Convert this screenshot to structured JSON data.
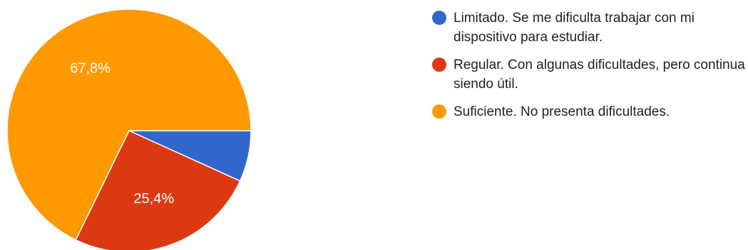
{
  "chart_data": {
    "type": "pie",
    "categories": [
      "Limitado. Se me dificulta trabajar con mi dispositivo para estudiar.",
      "Regular. Con algunas dificultades, pero continua siendo útil.",
      "Suficiente. No presenta dificultades."
    ],
    "values": [
      6.8,
      25.4,
      67.8
    ],
    "data_labels": [
      "",
      "25,4%",
      "67,8%"
    ],
    "colors": [
      "#3366cc",
      "#dc3912",
      "#ff9900"
    ],
    "legend_position": "right"
  },
  "legend": {
    "items": [
      {
        "label": "Limitado. Se me dificulta trabajar con mi dispositivo para estudiar.",
        "color": "#3366cc"
      },
      {
        "label": "Regular. Con algunas dificultades, pero continua siendo útil.",
        "color": "#dc3912"
      },
      {
        "label": "Suficiente. No presenta dificultades.",
        "color": "#ff9900"
      }
    ]
  }
}
